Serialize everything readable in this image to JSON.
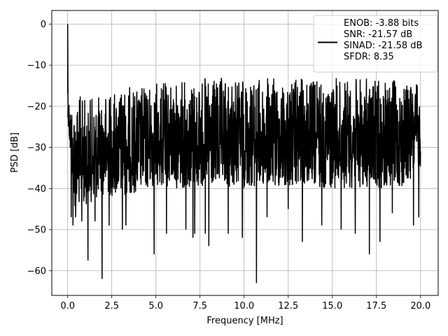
{
  "chart_data": {
    "type": "line",
    "xlabel": "Frequency [MHz]",
    "ylabel": "PSD [dB]",
    "xlim": [
      -0.9,
      21.0
    ],
    "ylim": [
      -66,
      3.3
    ],
    "xticks": [
      "0.0",
      "2.5",
      "5.0",
      "7.5",
      "10.0",
      "12.5",
      "15.0",
      "17.5",
      "20.0"
    ],
    "xtick_values": [
      0,
      2.5,
      5,
      7.5,
      10,
      12.5,
      15,
      17.5,
      20
    ],
    "yticks": [
      "0",
      "−10",
      "−20",
      "−30",
      "−40",
      "−50",
      "−60"
    ],
    "ytick_values": [
      0,
      -10,
      -20,
      -30,
      -40,
      -50,
      -60
    ],
    "grid": true,
    "legend_position": "upper-right",
    "line_color": "#000000",
    "series": [
      {
        "name": "ENOB: -3.88 bits\nSNR: -21.57 dB\nSINAD: -21.58 dB\nSFDR: 8.35",
        "description_of_shape": "dense noise floor",
        "x_range": [
          0,
          20
        ],
        "peak": {
          "x": 0.0,
          "y": 0
        },
        "upper_envelope": [
          [
            0.05,
            -17
          ],
          [
            0.3,
            -19
          ],
          [
            0.6,
            -17
          ],
          [
            1.2,
            -18
          ],
          [
            2.0,
            -17
          ],
          [
            3.0,
            -15
          ],
          [
            4.0,
            -15
          ],
          [
            5.0,
            -14
          ],
          [
            6.0,
            -14
          ],
          [
            7.0,
            -13
          ],
          [
            8.0,
            -13
          ],
          [
            9.0,
            -13
          ],
          [
            10.0,
            -13
          ],
          [
            11.0,
            -13
          ],
          [
            12.0,
            -13
          ],
          [
            13.0,
            -13
          ],
          [
            14.0,
            -13
          ],
          [
            15.0,
            -13
          ],
          [
            16.0,
            -13
          ],
          [
            17.0,
            -13
          ],
          [
            18.0,
            -13
          ],
          [
            19.0,
            -14
          ],
          [
            20.0,
            -14
          ]
        ],
        "lower_envelope": [
          [
            0.05,
            -25
          ],
          [
            0.3,
            -45
          ],
          [
            1.0,
            -44
          ],
          [
            2.0,
            -42
          ],
          [
            3.0,
            -42
          ],
          [
            4.0,
            -41
          ],
          [
            5.0,
            -40
          ],
          [
            6.0,
            -40
          ],
          [
            7.0,
            -40
          ],
          [
            8.0,
            -40
          ],
          [
            9.0,
            -40
          ],
          [
            10.0,
            -40
          ],
          [
            11.0,
            -40
          ],
          [
            12.0,
            -40
          ],
          [
            13.0,
            -40
          ],
          [
            14.0,
            -40
          ],
          [
            15.0,
            -40
          ],
          [
            16.0,
            -40
          ],
          [
            17.0,
            -40
          ],
          [
            18.0,
            -40
          ],
          [
            19.0,
            -40
          ],
          [
            20.0,
            -35
          ]
        ],
        "deep_dips": [
          [
            0.2,
            -47
          ],
          [
            0.3,
            -49
          ],
          [
            0.45,
            -47
          ],
          [
            0.8,
            -48
          ],
          [
            1.15,
            -57.5
          ],
          [
            1.55,
            -48
          ],
          [
            1.95,
            -62
          ],
          [
            2.35,
            -49
          ],
          [
            3.1,
            -50
          ],
          [
            3.3,
            -49
          ],
          [
            4.9,
            -56
          ],
          [
            5.6,
            -51
          ],
          [
            6.7,
            -50
          ],
          [
            7.1,
            -52
          ],
          [
            7.2,
            -51
          ],
          [
            7.8,
            -51
          ],
          [
            8.0,
            -54
          ],
          [
            9.1,
            -51
          ],
          [
            9.9,
            -52
          ],
          [
            10.7,
            -63
          ],
          [
            11.3,
            -47
          ],
          [
            12.5,
            -45
          ],
          [
            13.3,
            -53
          ],
          [
            14.4,
            -49
          ],
          [
            15.5,
            -50
          ],
          [
            16.3,
            -51
          ],
          [
            17.1,
            -56
          ],
          [
            17.7,
            -53
          ],
          [
            18.4,
            -46
          ],
          [
            19.6,
            -49
          ],
          [
            19.9,
            -47
          ]
        ]
      }
    ]
  }
}
